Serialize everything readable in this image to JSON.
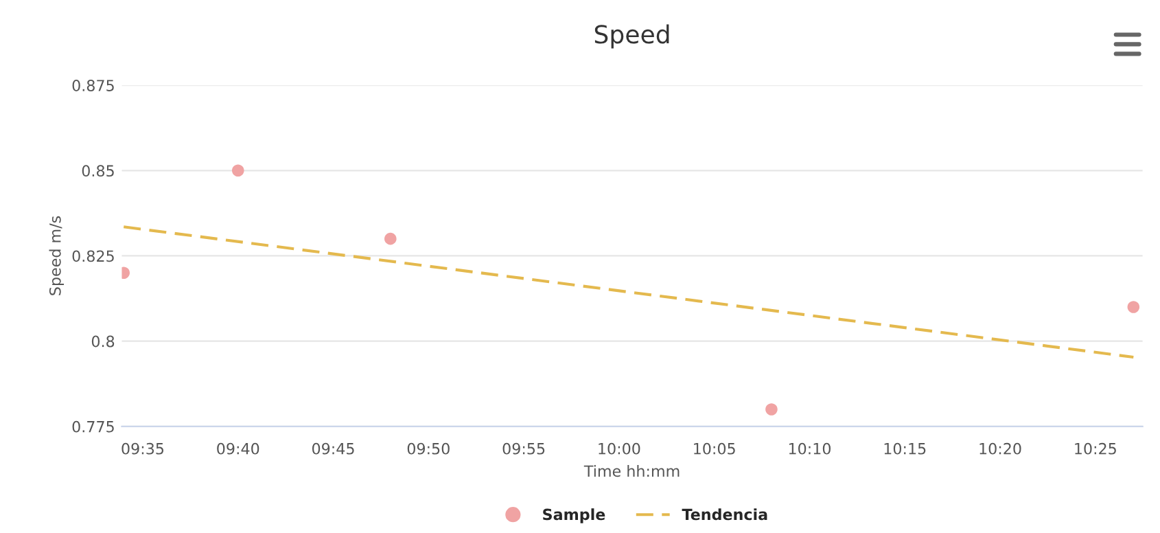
{
  "chart_data": {
    "type": "scatter",
    "title": "Speed",
    "xlabel": "Time hh:mm",
    "ylabel": "Speed m/s",
    "xlim": [
      9.565,
      10.458
    ],
    "ylim": [
      0.775,
      0.875
    ],
    "xticks": [
      {
        "value": 9.58333,
        "label": "09:35"
      },
      {
        "value": 9.66667,
        "label": "09:40"
      },
      {
        "value": 9.75,
        "label": "09:45"
      },
      {
        "value": 9.83333,
        "label": "09:50"
      },
      {
        "value": 9.91667,
        "label": "09:55"
      },
      {
        "value": 10.0,
        "label": "10:00"
      },
      {
        "value": 10.08333,
        "label": "10:05"
      },
      {
        "value": 10.16667,
        "label": "10:10"
      },
      {
        "value": 10.25,
        "label": "10:15"
      },
      {
        "value": 10.33333,
        "label": "10:20"
      },
      {
        "value": 10.41667,
        "label": "10:25"
      }
    ],
    "yticks": [
      0.775,
      {
        "value": 0.8,
        "label": "0.8"
      },
      0.825,
      {
        "value": 0.85,
        "label": "0.85"
      },
      0.875
    ],
    "grid": "y",
    "legend": "bottom",
    "series": [
      {
        "name": "Sample",
        "marker": "circle",
        "color": "#f0a3a3",
        "x": [
          9.56667,
          9.66667,
          9.8,
          10.13333,
          10.45
        ],
        "values": [
          0.82,
          0.85,
          0.83,
          0.78,
          0.81
        ]
      },
      {
        "name": "Tendencia",
        "type": "line",
        "line_style": "dashed",
        "marker": "none",
        "color": "#e4b94e",
        "x": [
          9.56667,
          10.45
        ],
        "values": [
          0.8335,
          0.7953
        ]
      }
    ]
  }
}
